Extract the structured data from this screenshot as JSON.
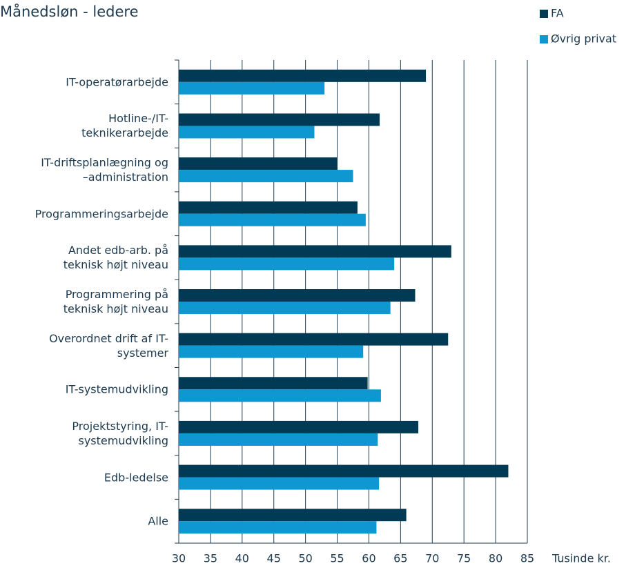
{
  "chart_data": {
    "type": "hbar",
    "title": "Månedsløn - ledere",
    "x_label": "Tusinde kr.",
    "categories": [
      "IT-operatørarbejde",
      "Hotline-/IT-\nteknikerarbejde",
      "IT-driftsplanlægning og\n–administration",
      "Programmeringsarbejde",
      "Andet edb-arb. på\nteknisk højt niveau",
      "Programmering på\nteknisk højt niveau",
      "Overordnet drift af IT-\nsystemer",
      "IT-systemudvikling",
      "Projektstyring, IT-\nsystemudvikling",
      "Edb-ledelse",
      "Alle"
    ],
    "series": [
      {
        "name": "FA",
        "color": "#003a54",
        "values": [
          69.0,
          61.7,
          55.0,
          58.2,
          73.0,
          67.3,
          72.5,
          59.8,
          67.8,
          82.0,
          65.9
        ]
      },
      {
        "name": "Øvrig privat",
        "color": "#0f97d2",
        "values": [
          53.0,
          51.4,
          57.5,
          59.5,
          64.0,
          63.4,
          59.1,
          61.9,
          61.4,
          61.6,
          61.2
        ]
      }
    ],
    "xlim": [
      30,
      85
    ],
    "xticks": [
      30,
      35,
      40,
      45,
      50,
      55,
      60,
      65,
      70,
      75,
      80,
      85
    ],
    "grid": true,
    "legend": "top-right"
  }
}
